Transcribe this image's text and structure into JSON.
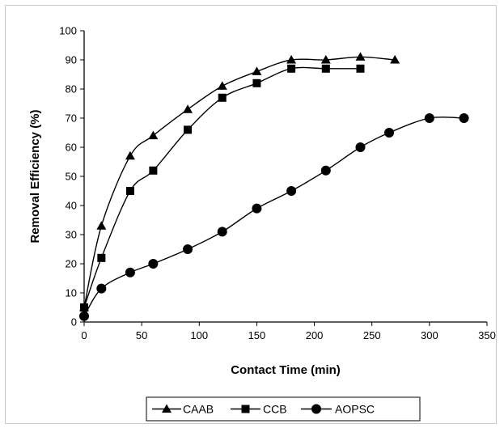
{
  "chart_data": {
    "type": "line",
    "title": "",
    "xlabel": "Contact Time (min)",
    "ylabel": "Removal Efficiency (%)",
    "xlim": [
      0,
      350
    ],
    "ylim": [
      0,
      100
    ],
    "x_ticks": [
      0,
      50,
      100,
      150,
      200,
      250,
      300,
      350
    ],
    "y_ticks": [
      0,
      10,
      20,
      30,
      40,
      50,
      60,
      70,
      80,
      90,
      100
    ],
    "grid": false,
    "legend_position": "bottom",
    "series": [
      {
        "name": "CAAB",
        "marker": "triangle",
        "x": [
          0,
          15,
          40,
          60,
          90,
          120,
          150,
          180,
          210,
          240,
          270
        ],
        "y": [
          5,
          33,
          57,
          64,
          73,
          81,
          86,
          90,
          90,
          91,
          90
        ]
      },
      {
        "name": "CCB",
        "marker": "square",
        "x": [
          0,
          15,
          40,
          60,
          90,
          120,
          150,
          180,
          210,
          240
        ],
        "y": [
          5,
          22,
          45,
          52,
          66,
          77,
          82,
          87,
          87,
          87
        ]
      },
      {
        "name": "AOPSC",
        "marker": "circle",
        "x": [
          0,
          15,
          40,
          60,
          90,
          120,
          150,
          180,
          210,
          240,
          265,
          300,
          330
        ],
        "y": [
          2,
          11.5,
          17,
          20,
          25,
          31,
          39,
          45,
          52,
          60,
          65,
          70,
          70
        ]
      }
    ]
  }
}
